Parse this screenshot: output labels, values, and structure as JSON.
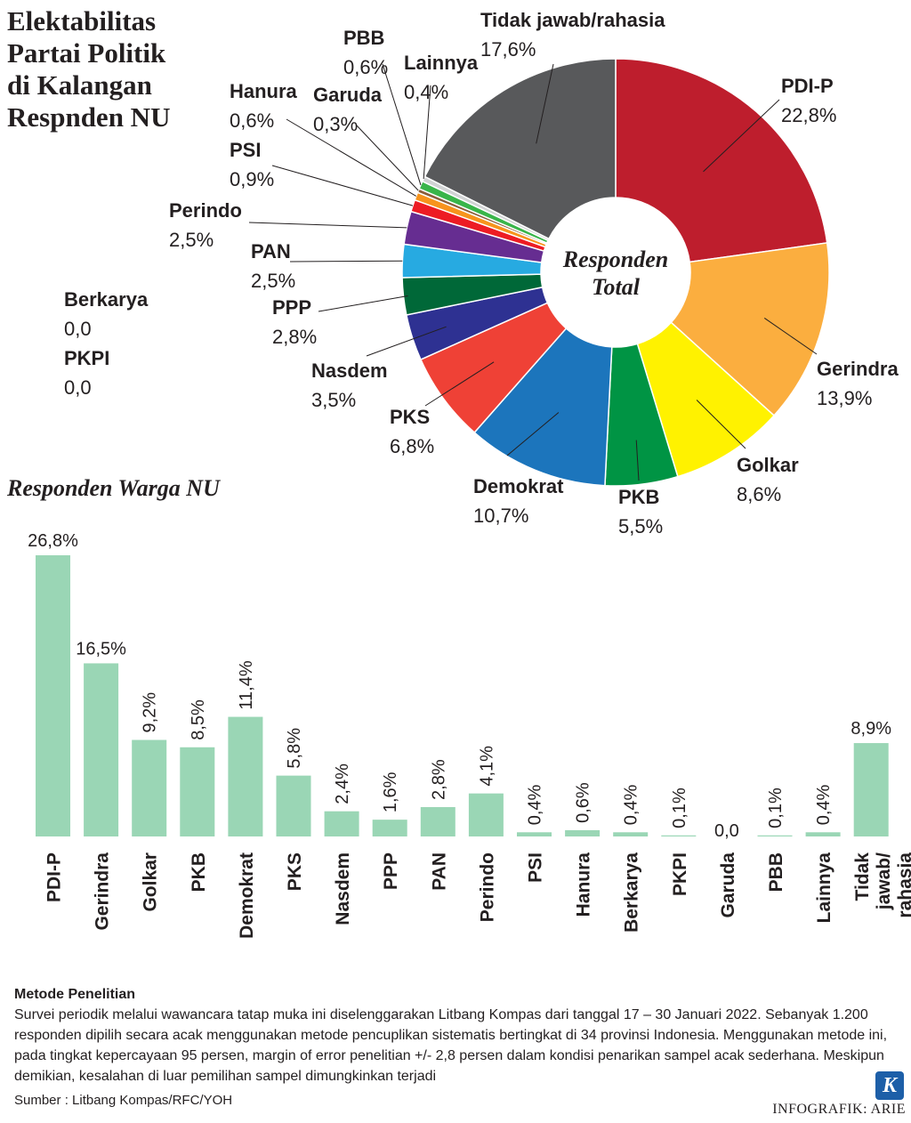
{
  "title_lines": [
    "Elektabilitas",
    "Partai Politik",
    "di Kalangan",
    "Respnden NU"
  ],
  "chart_data": [
    {
      "type": "pie",
      "style": "donut",
      "center_label_lines": [
        "Responden",
        "Total"
      ],
      "categories": [
        "PDI-P",
        "Gerindra",
        "Golkar",
        "PKB",
        "Demokrat",
        "PKS",
        "Nasdem",
        "PPP",
        "PAN",
        "Perindo",
        "PSI",
        "Hanura",
        "Garuda",
        "PBB",
        "Lainnya",
        "Tidak jawab/rahasia",
        "Berkarya",
        "PKPI"
      ],
      "values": [
        22.8,
        13.9,
        8.6,
        5.5,
        10.7,
        6.8,
        3.5,
        2.8,
        2.5,
        2.5,
        0.9,
        0.6,
        0.3,
        0.6,
        0.4,
        17.6,
        0.0,
        0.0
      ],
      "value_labels": [
        "22,8%",
        "13,9%",
        "8,6%",
        "5,5%",
        "10,7%",
        "6,8%",
        "3,5%",
        "2,8%",
        "2,5%",
        "2,5%",
        "0,9%",
        "0,6%",
        "0,3%",
        "0,6%",
        "0,4%",
        "17,6%",
        "0,0",
        "0,0"
      ],
      "colors": [
        "#be1e2d",
        "#fbae3f",
        "#fff200",
        "#009444",
        "#1c75bc",
        "#ef4136",
        "#2e3192",
        "#006838",
        "#27aae1",
        "#662d91",
        "#ed1c24",
        "#f7941d",
        "#8b5e3c",
        "#39b54a",
        "#d1d3d4",
        "#58595b",
        "#ffffff",
        "#ffffff"
      ]
    },
    {
      "type": "bar",
      "title": "Responden Warga NU",
      "categories": [
        "PDI-P",
        "Gerindra",
        "Golkar",
        "PKB",
        "Demokrat",
        "PKS",
        "Nasdem",
        "PPP",
        "PAN",
        "Perindo",
        "PSI",
        "Hanura",
        "Berkarya",
        "PKPI",
        "Garuda",
        "PBB",
        "Lainnya",
        "Tidak jawab/ rahasia"
      ],
      "values": [
        26.8,
        16.5,
        9.2,
        8.5,
        11.4,
        5.8,
        2.4,
        1.6,
        2.8,
        4.1,
        0.4,
        0.6,
        0.4,
        0.1,
        0.0,
        0.1,
        0.4,
        8.9
      ],
      "value_labels": [
        "26,8%",
        "16,5%",
        "9,2%",
        "8,5%",
        "11,4%",
        "5,8%",
        "2,4%",
        "1,6%",
        "2,8%",
        "4,1%",
        "0,4%",
        "0,6%",
        "0,4%",
        "0,1%",
        "0,0",
        "0,1%",
        "0,4%",
        "8,9%"
      ],
      "bar_color": "#9ad6b5",
      "ylim": [
        0,
        26.8
      ]
    }
  ],
  "metode": {
    "title": "Metode Penelitian",
    "text": "Survei periodik melalui wawancara tatap muka ini diselenggarakan Litbang Kompas dari tanggal 17 – 30 Januari 2022. Sebanyak 1.200 responden dipilih secara acak menggunakan metode pencuplikan sistematis bertingkat di 34 provinsi Indonesia. Menggunakan metode ini, pada tingkat kepercayaan 95 persen, margin of error penelitian +/- 2,8 persen dalam kondisi penarikan sampel acak sederhana. Meskipun demikian, kesalahan di luar pemilihan sampel dimungkinkan terjadi"
  },
  "source": "Sumber : Litbang Kompas/RFC/YOH",
  "credit": "INFOGRAFIK: ARIE",
  "logo_letter": "K"
}
